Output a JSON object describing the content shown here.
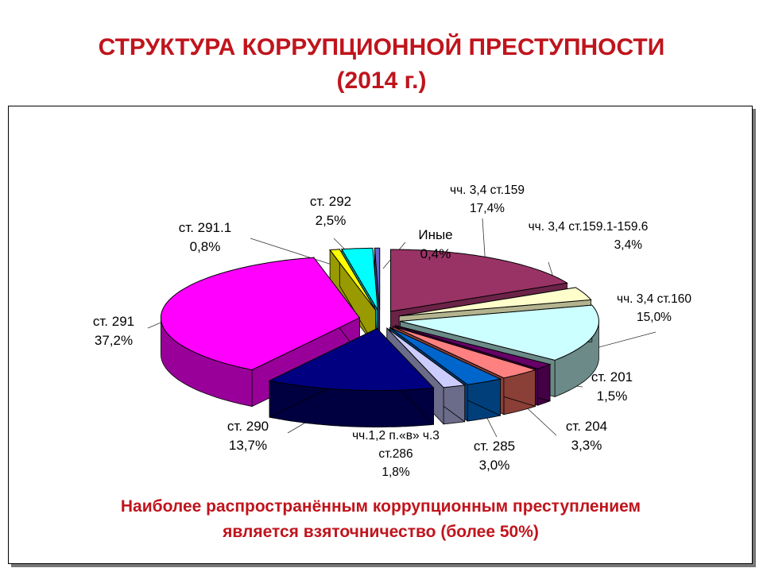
{
  "title_line1": "СТРУКТУРА КОРРУПЦИОННОЙ ПРЕСТУПНОСТИ",
  "title_line2": "(2014 г.)",
  "footnote_line1": "Наиболее распространённым коррупционным преступлением",
  "footnote_line2": "является взяточничество (более 50%)",
  "chart_data": {
    "type": "pie",
    "title": "",
    "slices": [
      {
        "label": "чч. 3,4 ст.159",
        "display": "17,4%",
        "value": 17.4,
        "color": "#993366",
        "side": "#6b2347"
      },
      {
        "label": "чч. 3,4 ст.159.1-159.6",
        "display": "3,4%",
        "value": 3.4,
        "color": "#ffffcc",
        "side": "#b3b38f"
      },
      {
        "label": "чч. 3,4 ст.160",
        "display": "15,0%",
        "value": 15.0,
        "color": "#ccffff",
        "side": "#6b8a88"
      },
      {
        "label": "ст. 201",
        "display": "1,5%",
        "value": 1.5,
        "color": "#660066",
        "side": "#440044"
      },
      {
        "label": "ст. 204",
        "display": "3,3%",
        "value": 3.3,
        "color": "#ff8080",
        "side": "#8a3f37"
      },
      {
        "label": "ст. 285",
        "display": "3,0%",
        "value": 3.0,
        "color": "#0066cc",
        "side": "#003f7a"
      },
      {
        "label": "чч.1,2 п.«в» ч.3 ст.286",
        "display": "1,8%",
        "value": 1.8,
        "color": "#ccccff",
        "side": "#6b6b8a"
      },
      {
        "label": "ст. 290",
        "display": "13,7%",
        "value": 13.7,
        "color": "#000080",
        "side": "#000040"
      },
      {
        "label": "ст. 291",
        "display": "37,2%",
        "value": 37.2,
        "color": "#ff00ff",
        "side": "#990099"
      },
      {
        "label": "ст. 291.1",
        "display": "0,8%",
        "value": 0.8,
        "color": "#ffff00",
        "side": "#999900"
      },
      {
        "label": "ст. 292",
        "display": "2,5%",
        "value": 2.5,
        "color": "#00ffff",
        "side": "#009999"
      },
      {
        "label": "Иные",
        "display": "0,4%",
        "value": 0.4,
        "color": "#6666cc",
        "side": "#3d3d7a"
      }
    ]
  }
}
